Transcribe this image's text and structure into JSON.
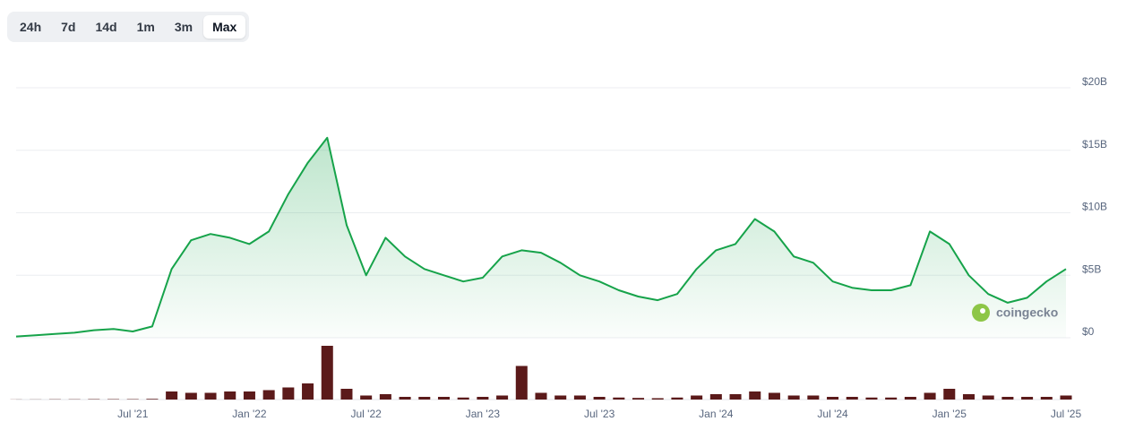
{
  "tabs": {
    "options": [
      "24h",
      "7d",
      "14d",
      "1m",
      "3m",
      "Max"
    ],
    "selected": 5
  },
  "chart_data": {
    "type": "area",
    "watermark": "coingecko",
    "x": [
      "2021-01",
      "2021-02",
      "2021-03",
      "2021-04",
      "2021-05",
      "2021-06",
      "2021-07",
      "2021-08",
      "2021-09",
      "2021-10",
      "2021-11",
      "2021-12",
      "2022-01",
      "2022-02",
      "2022-03",
      "2022-04",
      "2022-05",
      "2022-06",
      "2022-07",
      "2022-08",
      "2022-09",
      "2022-10",
      "2022-11",
      "2022-12",
      "2023-01",
      "2023-02",
      "2023-03",
      "2023-04",
      "2023-05",
      "2023-06",
      "2023-07",
      "2023-08",
      "2023-09",
      "2023-10",
      "2023-11",
      "2023-12",
      "2024-01",
      "2024-02",
      "2024-03",
      "2024-04",
      "2024-05",
      "2024-06",
      "2024-07",
      "2024-08",
      "2024-09",
      "2024-10",
      "2024-11",
      "2024-12",
      "2025-01",
      "2025-02",
      "2025-03",
      "2025-04",
      "2025-05",
      "2025-06",
      "2025-07"
    ],
    "values": [
      0.1,
      0.2,
      0.3,
      0.4,
      0.6,
      0.7,
      0.5,
      0.9,
      5.5,
      7.8,
      8.3,
      8.0,
      7.5,
      8.5,
      11.5,
      14.0,
      16.0,
      9.0,
      5.0,
      8.0,
      6.5,
      5.5,
      5.0,
      4.5,
      4.8,
      6.5,
      7.0,
      6.8,
      6.0,
      5.0,
      4.5,
      3.8,
      3.3,
      3.0,
      3.5,
      5.5,
      7.0,
      7.5,
      9.5,
      8.5,
      6.5,
      6.0,
      4.5,
      4.0,
      3.8,
      3.8,
      4.2,
      8.5,
      7.5,
      5.0,
      3.5,
      2.8,
      3.2,
      4.5,
      5.5
    ],
    "volume": [
      0.1,
      0.1,
      0.2,
      0.2,
      0.3,
      0.3,
      0.3,
      0.5,
      6,
      5,
      5,
      6,
      6,
      7,
      9,
      12,
      40,
      8,
      3,
      4,
      2,
      2,
      2,
      1.5,
      2,
      3,
      25,
      5,
      3,
      3,
      2,
      1.5,
      1.2,
      1,
      1.5,
      3,
      4,
      4,
      6,
      5,
      3,
      3,
      2,
      2,
      1.5,
      1.5,
      2,
      5,
      8,
      4,
      3,
      2,
      2,
      2,
      3
    ],
    "color": "#16a34a",
    "volume_color": "#5b1a1a",
    "xlim": [
      "2021-01",
      "2025-07"
    ],
    "xticks": [
      {
        "value": "2021-07",
        "label": "Jul '21"
      },
      {
        "value": "2022-01",
        "label": "Jan '22"
      },
      {
        "value": "2022-07",
        "label": "Jul '22"
      },
      {
        "value": "2023-01",
        "label": "Jan '23"
      },
      {
        "value": "2023-07",
        "label": "Jul '23"
      },
      {
        "value": "2024-01",
        "label": "Jan '24"
      },
      {
        "value": "2024-07",
        "label": "Jul '24"
      },
      {
        "value": "2025-01",
        "label": "Jan '25"
      },
      {
        "value": "2025-07",
        "label": "Jul '25"
      }
    ],
    "ylim": [
      0,
      20
    ],
    "yticks": [
      {
        "value": 0,
        "label": "$0"
      },
      {
        "value": 5,
        "label": "$5B"
      },
      {
        "value": 10,
        "label": "$10B"
      },
      {
        "value": 15,
        "label": "$15B"
      },
      {
        "value": 20,
        "label": "$20B"
      }
    ],
    "volume_ylim": [
      0,
      40
    ],
    "grid": true
  }
}
